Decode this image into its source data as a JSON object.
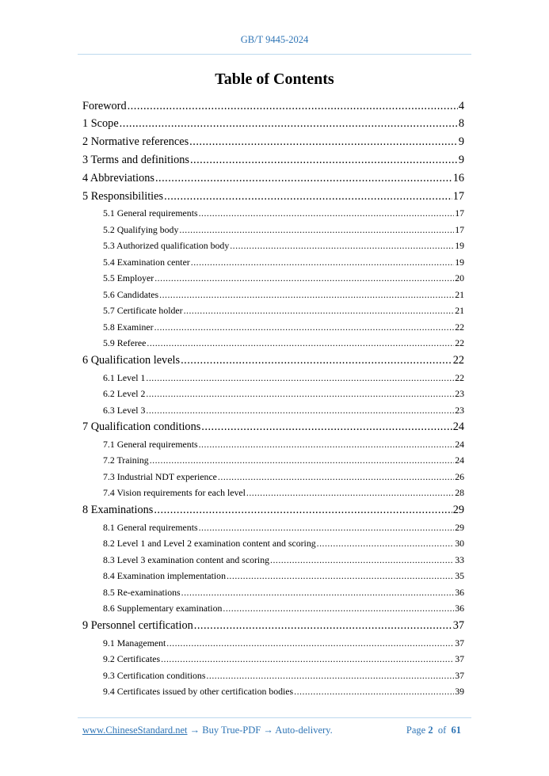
{
  "header": {
    "doc_id": "GB/T 9445-2024"
  },
  "title": "Table of Contents",
  "toc": [
    {
      "level": 1,
      "label": "Foreword",
      "page": "4"
    },
    {
      "level": 1,
      "label": "1 Scope",
      "page": "8"
    },
    {
      "level": 1,
      "label": "2 Normative references",
      "page": "9"
    },
    {
      "level": 1,
      "label": "3 Terms and definitions",
      "page": "9"
    },
    {
      "level": 1,
      "label": "4 Abbreviations",
      "page": "16"
    },
    {
      "level": 1,
      "label": "5 Responsibilities",
      "page": "17"
    },
    {
      "level": 2,
      "label": "5.1 General requirements",
      "page": "17"
    },
    {
      "level": 2,
      "label": "5.2 Qualifying body",
      "page": "17"
    },
    {
      "level": 2,
      "label": "5.3 Authorized qualification body",
      "page": "19"
    },
    {
      "level": 2,
      "label": "5.4 Examination center",
      "page": "19"
    },
    {
      "level": 2,
      "label": "5.5 Employer",
      "page": "20"
    },
    {
      "level": 2,
      "label": "5.6 Candidates",
      "page": "21"
    },
    {
      "level": 2,
      "label": "5.7 Certificate holder",
      "page": "21"
    },
    {
      "level": 2,
      "label": "5.8 Examiner",
      "page": "22"
    },
    {
      "level": 2,
      "label": "5.9 Referee",
      "page": "22"
    },
    {
      "level": 1,
      "label": "6 Qualification levels",
      "page": "22"
    },
    {
      "level": 2,
      "label": "6.1 Level 1",
      "page": "22"
    },
    {
      "level": 2,
      "label": "6.2 Level 2",
      "page": "23"
    },
    {
      "level": 2,
      "label": "6.3 Level 3",
      "page": "23"
    },
    {
      "level": 1,
      "label": "7 Qualification conditions",
      "page": "24"
    },
    {
      "level": 2,
      "label": "7.1 General requirements",
      "page": "24"
    },
    {
      "level": 2,
      "label": "7.2 Training",
      "page": "24"
    },
    {
      "level": 2,
      "label": "7.3 Industrial NDT experience",
      "page": "26"
    },
    {
      "level": 2,
      "label": "7.4 Vision requirements for each level",
      "page": "28"
    },
    {
      "level": 1,
      "label": "8 Examinations",
      "page": "29"
    },
    {
      "level": 2,
      "label": "8.1 General requirements",
      "page": "29"
    },
    {
      "level": 2,
      "label": "8.2 Level 1 and Level 2 examination content and scoring",
      "page": "30"
    },
    {
      "level": 2,
      "label": "8.3 Level 3 examination content and scoring",
      "page": "33"
    },
    {
      "level": 2,
      "label": "8.4 Examination implementation",
      "page": "35"
    },
    {
      "level": 2,
      "label": "8.5 Re-examinations",
      "page": "36"
    },
    {
      "level": 2,
      "label": "8.6 Supplementary examination",
      "page": "36"
    },
    {
      "level": 1,
      "label": "9 Personnel certification",
      "page": "37"
    },
    {
      "level": 2,
      "label": "9.1 Management",
      "page": "37"
    },
    {
      "level": 2,
      "label": "9.2 Certificates",
      "page": "37"
    },
    {
      "level": 2,
      "label": "9.3 Certification conditions",
      "page": "37"
    },
    {
      "level": 2,
      "label": "9.4 Certificates issued by other certification bodies",
      "page": "39"
    }
  ],
  "footer": {
    "link": "www.ChineseStandard.net",
    "tagline": " → Buy True-PDF → Auto-delivery.",
    "page_prefix": "Page",
    "page": "2",
    "of": "of",
    "total": "61"
  },
  "colors": {
    "accent": "#2e74b5",
    "rule": "#bcd8ee"
  }
}
